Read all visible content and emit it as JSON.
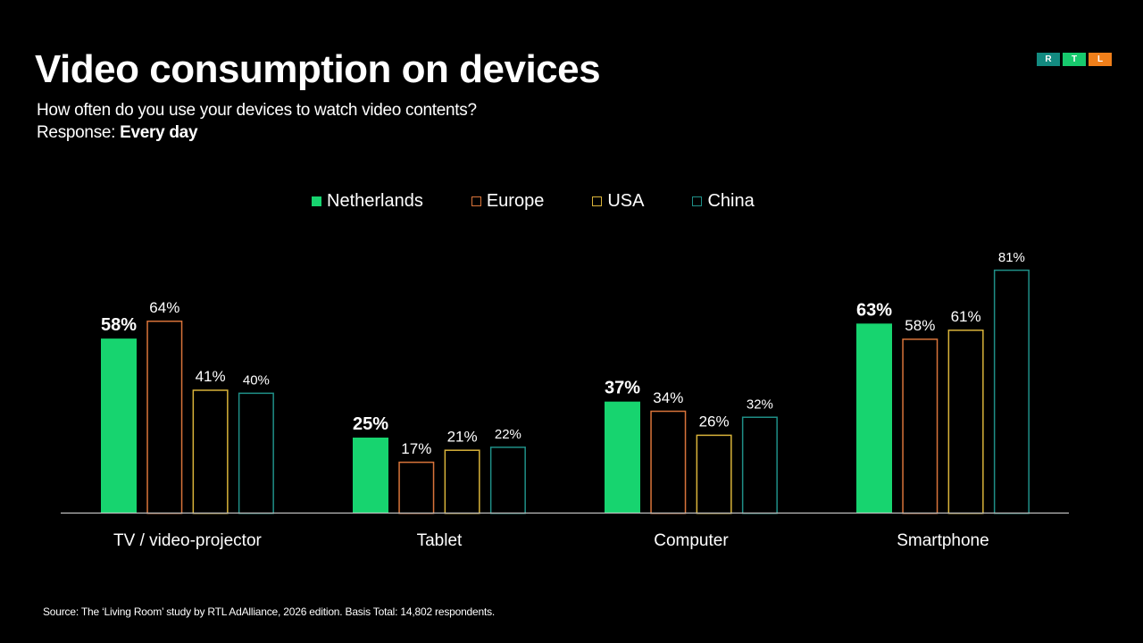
{
  "header": {
    "title": "Video consumption on devices",
    "subtitle": "How often do you use your devices to watch video contents?",
    "response_label": "Response:",
    "response_value": "Every day"
  },
  "logo": {
    "letters": [
      "R",
      "T",
      "L"
    ],
    "colors": [
      "#138a80",
      "#17c96d",
      "#f07f1a"
    ]
  },
  "footer": {
    "source": "Source: The ‘Living Room’ study by RTL AdAlliance, 2026 edition. Basis Total: 14,802 respondents."
  },
  "chart_data": {
    "type": "bar",
    "title": "Video consumption on devices",
    "xlabel": "",
    "ylabel": "",
    "ylim": [
      0,
      100
    ],
    "grid": false,
    "legend_position": "top-center",
    "categories": [
      "TV / video-projector",
      "Tablet",
      "Computer",
      "Smartphone"
    ],
    "series": [
      {
        "name": "Netherlands",
        "color": "#17d46f",
        "style": "filled",
        "values": [
          58,
          25,
          37,
          63
        ],
        "labels": [
          "58%",
          "25%",
          "37%",
          "63%"
        ]
      },
      {
        "name": "Europe",
        "color": "#d9743a",
        "style": "outline",
        "values": [
          64,
          17,
          34,
          58
        ],
        "labels": [
          "64%",
          "17%",
          "34%",
          "58%"
        ]
      },
      {
        "name": "USA",
        "color": "#d9b33a",
        "style": "outline",
        "values": [
          41,
          21,
          26,
          61
        ],
        "labels": [
          "41%",
          "21%",
          "26%",
          "61%"
        ]
      },
      {
        "name": "China",
        "color": "#1f8f87",
        "style": "outline",
        "values": [
          40,
          22,
          32,
          81
        ],
        "labels": [
          "40%",
          "22%",
          "32%",
          "81%"
        ]
      }
    ]
  }
}
